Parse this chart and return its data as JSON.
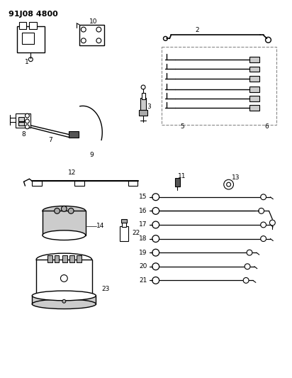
{
  "title": "91J08 4800",
  "background_color": "#ffffff",
  "line_color": "#000000",
  "figsize": [
    4.12,
    5.33
  ],
  "dpi": 100,
  "gray_light": "#cccccc",
  "gray_med": "#aaaaaa",
  "gray_dark": "#555555",
  "dashed_color": "#888888"
}
